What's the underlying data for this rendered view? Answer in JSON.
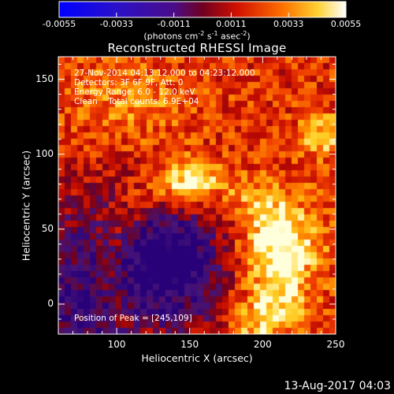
{
  "colorbar": {
    "ticks": [
      "-0.0055",
      "-0.0033",
      "-0.0011",
      "0.0011",
      "0.0033",
      "0.0055"
    ],
    "range": [
      -0.0055,
      0.0055
    ],
    "units_text": "(photons cm",
    "units_sup1": "-2",
    "units_mid1": " s",
    "units_sup2": "-1",
    "units_mid2": " asec",
    "units_sup3": "-2",
    "units_end": ")"
  },
  "chart_data": {
    "type": "heatmap",
    "title": "Reconstructed RHESSI Image",
    "xlabel": "Heliocentric X (arcsec)",
    "ylabel": "Heliocentric Y (arcsec)",
    "xlim": [
      60,
      250
    ],
    "ylim": [
      -20,
      165
    ],
    "xticks": [
      "100",
      "150",
      "200",
      "250"
    ],
    "xtick_values": [
      100,
      150,
      200,
      250
    ],
    "yticks": [
      "0",
      "50",
      "100",
      "150"
    ],
    "ytick_values": [
      0,
      50,
      100,
      150
    ],
    "colormap": "RHESSI (blue-purple-red-orange-yellow-white)",
    "peak": [
      245,
      109
    ],
    "annotations": [
      "27-Nov-2014 04:13:12.000 to 04:23:12.000",
      "Detectors: 3F 6F 9F, Att: 0",
      "Energy Range: 6.0 - 12.0 keV",
      "Clean    Total counts: 6.9E+04"
    ],
    "peak_text": "Position of Peak = [245,109]"
  },
  "footer": {
    "date": "13-Aug-2017 04:03"
  }
}
